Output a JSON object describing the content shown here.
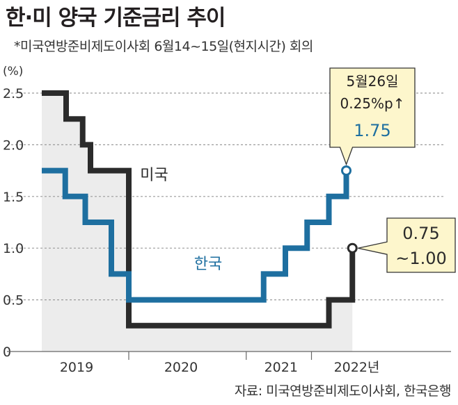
{
  "title": "한·미 양국 기준금리 추이",
  "subtitle": "*미국연방준비제도이사회 6월14~15일(현지시간) 회의",
  "source": "자료: 미국연방준비제도이사회, 한국은행",
  "colors": {
    "us": "#2b2b2b",
    "korea": "#1e6fa0",
    "area": "#ececec",
    "grid": "#9a9a9a",
    "callout_fill": "#fdf6cc"
  },
  "chart_data": {
    "type": "line",
    "unit": "(%)",
    "yticks": [
      "2.5",
      "2.0",
      "1.5",
      "1.0",
      "0.5",
      "0"
    ],
    "ylim": [
      0,
      2.5
    ],
    "xlim": [
      0,
      3.8
    ],
    "xlabels": [
      "2019",
      "2020",
      "2021",
      "2022년"
    ],
    "series": [
      {
        "name": "미국",
        "points": [
          [
            0,
            2.5
          ],
          [
            0.28,
            2.5
          ],
          [
            0.28,
            2.25
          ],
          [
            0.47,
            2.25
          ],
          [
            0.47,
            2.0
          ],
          [
            0.56,
            2.0
          ],
          [
            0.56,
            1.75
          ],
          [
            1.0,
            1.75
          ],
          [
            1.0,
            0.25
          ],
          [
            3.3,
            0.25
          ],
          [
            3.3,
            0.5
          ],
          [
            3.57,
            0.5
          ],
          [
            3.57,
            1.0
          ]
        ]
      },
      {
        "name": "한국",
        "points": [
          [
            0,
            1.75
          ],
          [
            0.27,
            1.75
          ],
          [
            0.27,
            1.5
          ],
          [
            0.5,
            1.5
          ],
          [
            0.5,
            1.25
          ],
          [
            0.8,
            1.25
          ],
          [
            0.8,
            0.75
          ],
          [
            1.0,
            0.75
          ],
          [
            1.0,
            0.5
          ],
          [
            2.55,
            0.5
          ],
          [
            2.55,
            0.75
          ],
          [
            2.8,
            0.75
          ],
          [
            2.8,
            1.0
          ],
          [
            3.05,
            1.0
          ],
          [
            3.05,
            1.25
          ],
          [
            3.3,
            1.25
          ],
          [
            3.3,
            1.5
          ],
          [
            3.5,
            1.5
          ],
          [
            3.5,
            1.75
          ]
        ]
      }
    ],
    "callouts": [
      {
        "lines": [
          "5월26일",
          "0.25%p↑"
        ],
        "value": "1.75",
        "series": "한국"
      },
      {
        "lines": [
          "0.75",
          "~1.00"
        ],
        "value": "",
        "series": "미국"
      }
    ]
  }
}
